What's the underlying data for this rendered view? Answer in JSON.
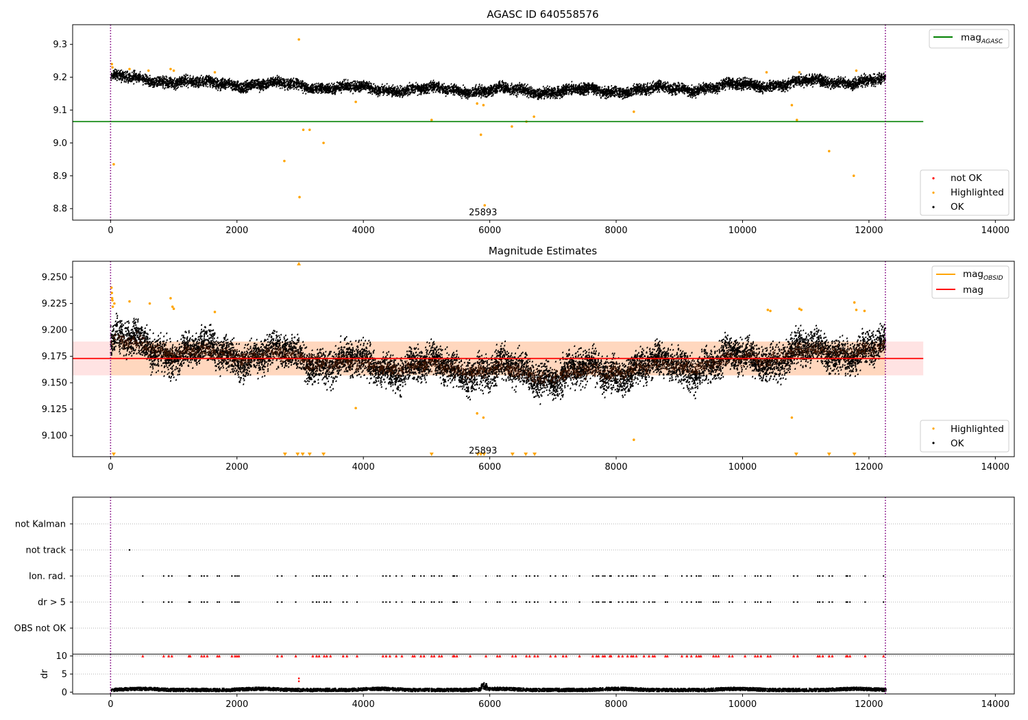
{
  "colors": {
    "ok": "#000000",
    "highlighted": "#ffa500",
    "not_ok": "#ff0000",
    "agasc_line": "#008000",
    "obsid_line": "#ffa500",
    "mag_line": "#ff0000",
    "mag_band": "#ffc0c0",
    "epoch_marker": "#800080",
    "obsid_band": "#ffcc99"
  },
  "chart_data": [
    {
      "type": "scatter",
      "title": "AGASC ID 640558576",
      "xlim": [
        -600,
        14300
      ],
      "ylim": [
        8.765,
        9.36
      ],
      "xticks": [
        "0",
        "2000",
        "4000",
        "6000",
        "8000",
        "10000",
        "12000",
        "14000"
      ],
      "yticks": [
        "8.8",
        "8.9",
        "9.0",
        "9.1",
        "9.2",
        "9.3"
      ],
      "legend_lines": [
        {
          "label": "mag",
          "sub": "AGASC",
          "color": "#008000"
        }
      ],
      "legend_points": [
        {
          "label": "not OK",
          "color": "#ff0000"
        },
        {
          "label": "Highlighted",
          "color": "#ffa500"
        },
        {
          "label": "OK",
          "color": "#000000"
        }
      ],
      "mag_agasc": 9.065,
      "vlines": [
        0,
        12260
      ],
      "annotation": {
        "text": "25893",
        "x": 5893,
        "y": 8.78
      },
      "ok_trend": [
        [
          0,
          9.205
        ],
        [
          500,
          9.19
        ],
        [
          1000,
          9.19
        ],
        [
          1500,
          9.18
        ],
        [
          2000,
          9.18
        ],
        [
          2500,
          9.178
        ],
        [
          3000,
          9.175
        ],
        [
          3500,
          9.17
        ],
        [
          4000,
          9.165
        ],
        [
          5000,
          9.163
        ],
        [
          6000,
          9.16
        ],
        [
          7000,
          9.158
        ],
        [
          8000,
          9.16
        ],
        [
          9000,
          9.165
        ],
        [
          10000,
          9.175
        ],
        [
          11000,
          9.185
        ],
        [
          12260,
          9.19
        ]
      ],
      "highlighted": [
        [
          20,
          9.24
        ],
        [
          30,
          9.23
        ],
        [
          50,
          8.935
        ],
        [
          300,
          9.225
        ],
        [
          600,
          9.22
        ],
        [
          950,
          9.225
        ],
        [
          1000,
          9.22
        ],
        [
          1650,
          9.215
        ],
        [
          2750,
          8.945
        ],
        [
          2980,
          9.315
        ],
        [
          2990,
          8.835
        ],
        [
          3050,
          9.04
        ],
        [
          3150,
          9.04
        ],
        [
          3370,
          9.0
        ],
        [
          3880,
          9.125
        ],
        [
          5080,
          9.07
        ],
        [
          5800,
          9.12
        ],
        [
          5860,
          9.025
        ],
        [
          5900,
          9.115
        ],
        [
          5920,
          8.81
        ],
        [
          6350,
          9.05
        ],
        [
          6580,
          9.065
        ],
        [
          6700,
          9.08
        ],
        [
          8280,
          9.095
        ],
        [
          10380,
          9.215
        ],
        [
          10780,
          9.115
        ],
        [
          10860,
          9.07
        ],
        [
          10900,
          9.215
        ],
        [
          11370,
          8.975
        ],
        [
          11760,
          8.9
        ],
        [
          11800,
          9.22
        ]
      ]
    },
    {
      "type": "scatter",
      "title": "Magnitude Estimates",
      "xlim": [
        -600,
        14300
      ],
      "ylim": [
        9.08,
        9.265
      ],
      "xticks": [
        "0",
        "2000",
        "4000",
        "6000",
        "8000",
        "10000",
        "12000",
        "14000"
      ],
      "yticks": [
        "9.100",
        "9.125",
        "9.150",
        "9.175",
        "9.200",
        "9.225",
        "9.250"
      ],
      "legend_lines": [
        {
          "label": "mag",
          "sub": "OBSID",
          "color": "#ffa500"
        },
        {
          "label": "mag",
          "sub": "",
          "color": "#ff0000"
        }
      ],
      "legend_points": [
        {
          "label": "Highlighted",
          "color": "#ffa500"
        },
        {
          "label": "OK",
          "color": "#000000"
        }
      ],
      "mag": 9.173,
      "mag_band": [
        9.157,
        9.189
      ],
      "vlines": [
        0,
        12260
      ],
      "annotation": {
        "text": "25893",
        "x": 5893,
        "y": 9.083
      },
      "ok_trend": [
        [
          0,
          9.19
        ],
        [
          500,
          9.185
        ],
        [
          1000,
          9.18
        ],
        [
          1500,
          9.178
        ],
        [
          2000,
          9.177
        ],
        [
          2500,
          9.176
        ],
        [
          3000,
          9.174
        ],
        [
          3500,
          9.17
        ],
        [
          4000,
          9.166
        ],
        [
          5000,
          9.165
        ],
        [
          6000,
          9.162
        ],
        [
          7000,
          9.157
        ],
        [
          8000,
          9.162
        ],
        [
          9000,
          9.166
        ],
        [
          10000,
          9.172
        ],
        [
          11000,
          9.178
        ],
        [
          12260,
          9.182
        ]
      ],
      "highlighted": [
        [
          15,
          9.24
        ],
        [
          20,
          9.235
        ],
        [
          25,
          9.23
        ],
        [
          30,
          9.228
        ],
        [
          35,
          9.222
        ],
        [
          60,
          9.225
        ],
        [
          300,
          9.227
        ],
        [
          620,
          9.225
        ],
        [
          950,
          9.23
        ],
        [
          980,
          9.222
        ],
        [
          1000,
          9.22
        ],
        [
          1650,
          9.217
        ],
        [
          3880,
          9.126
        ],
        [
          5800,
          9.121
        ],
        [
          5900,
          9.117
        ],
        [
          8280,
          9.096
        ],
        [
          10400,
          9.219
        ],
        [
          10440,
          9.218
        ],
        [
          10780,
          9.117
        ],
        [
          10900,
          9.22
        ],
        [
          10930,
          9.219
        ],
        [
          11770,
          9.226
        ],
        [
          11800,
          9.219
        ],
        [
          11930,
          9.218
        ]
      ],
      "out_of_range_low": [
        50,
        2760,
        2960,
        3040,
        3150,
        3370,
        5080,
        5810,
        5860,
        5910,
        6360,
        6570,
        6710,
        10850,
        11370,
        11770
      ],
      "out_of_range_high": [
        2980
      ]
    },
    {
      "type": "scatter",
      "title": "",
      "xlim": [
        -600,
        14300
      ],
      "yticks": [
        "not Kalman",
        "not track",
        "Ion. rad.",
        "dr > 5",
        "OBS not OK"
      ],
      "flag_x": [
        510,
        840,
        920,
        970,
        1240,
        1260,
        1440,
        1480,
        1530,
        1690,
        1720,
        1920,
        1970,
        2000,
        2030,
        2640,
        2710,
        2930,
        3200,
        3260,
        3300,
        3380,
        3420,
        3480,
        3680,
        3740,
        3900,
        4310,
        4360,
        4420,
        4520,
        4610,
        4780,
        4810,
        4910,
        4960,
        5080,
        5120,
        5200,
        5240,
        5420,
        5440,
        5480,
        5690,
        5940,
        6120,
        6160,
        6360,
        6410,
        6580,
        6630,
        6710,
        6760,
        6960,
        7040,
        7160,
        7210,
        7420,
        7630,
        7690,
        7720,
        7790,
        7820,
        7900,
        7920,
        8040,
        8100,
        8180,
        8240,
        8270,
        8320,
        8440,
        8520,
        8580,
        8610,
        8780,
        8810,
        9040,
        9120,
        9190,
        9270,
        9310,
        9340,
        9540,
        9580,
        9620,
        9790,
        9840,
        10040,
        10200,
        10240,
        10290,
        10400,
        10440,
        10810,
        10870,
        11190,
        11220,
        11270,
        11370,
        11420,
        11640,
        11660,
        11700,
        11940,
        12230
      ],
      "not_track_x": [
        300
      ],
      "dr_ylabel": "dr",
      "dr_yticks": [
        "0",
        "5",
        "10"
      ],
      "dr_ylim": [
        -0.5,
        10.5
      ],
      "dr_level": 0.6,
      "dr_high_x": [
        2980
      ],
      "vlines": [
        0,
        12260
      ]
    }
  ]
}
